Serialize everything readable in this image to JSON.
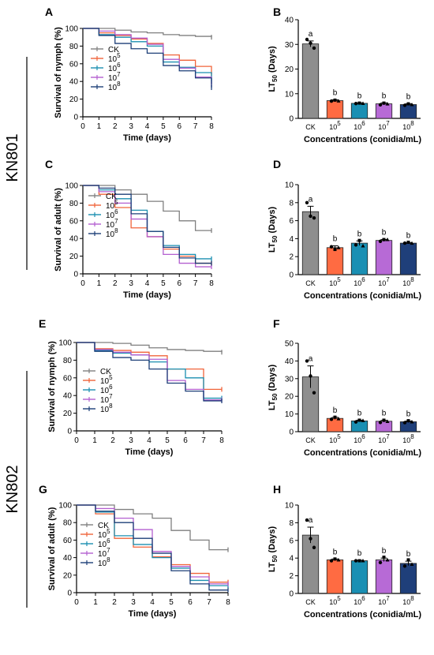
{
  "strain_labels": [
    "KN801",
    "KN802"
  ],
  "colors": {
    "CK": "#7f7f7f",
    "1e5": "#f0643a",
    "1e6": "#1b8fb0",
    "1e7": "#b35fd0",
    "1e8": "#1d3f78",
    "bar_CK": "#8e8e8e",
    "bar_1e5": "#ff6b42",
    "bar_1e6": "#1a8fb3",
    "bar_1e7": "#b76ad6",
    "bar_1e8": "#1f3f7a"
  },
  "chart_data": [
    {
      "panel": "A",
      "type": "line",
      "step": true,
      "xlabel": "Time (days)",
      "ylabel": "Survival of nymph (%)",
      "x": [
        0,
        1,
        2,
        3,
        4,
        5,
        6,
        7,
        8
      ],
      "xlim": [
        0,
        8
      ],
      "ylim": [
        0,
        100
      ],
      "xticks": [
        "0",
        "1",
        "2",
        "3",
        "4",
        "5",
        "6",
        "7",
        "8"
      ],
      "yticks": [
        "0",
        "20",
        "40",
        "60",
        "80",
        "100"
      ],
      "legend": {
        "labels": [
          "CK",
          "10",
          "10",
          "10",
          "10"
        ],
        "exponents": [
          "",
          "5",
          "6",
          "7",
          "8"
        ],
        "position": "left"
      },
      "series": [
        {
          "name": "CK",
          "color_key": "CK",
          "values": [
            100,
            100,
            98,
            96,
            95,
            93,
            92,
            91,
            90
          ]
        },
        {
          "name": "10^5",
          "color_key": "1e5",
          "values": [
            100,
            95,
            92,
            88,
            83,
            70,
            64,
            57,
            48
          ]
        },
        {
          "name": "10^6",
          "color_key": "1e6",
          "values": [
            100,
            93,
            90,
            85,
            80,
            62,
            56,
            50,
            40
          ]
        },
        {
          "name": "10^7",
          "color_key": "1e7",
          "values": [
            100,
            97,
            93,
            89,
            82,
            65,
            55,
            45,
            37
          ]
        },
        {
          "name": "10^8",
          "color_key": "1e8",
          "values": [
            100,
            92,
            83,
            77,
            72,
            58,
            52,
            44,
            33
          ]
        }
      ]
    },
    {
      "panel": "B",
      "type": "bar",
      "xlabel": "Concentrations (conidia/mL)",
      "ylabel": "LT",
      "ylabel_sub": "50",
      "ylabel_tail": " (Days)",
      "categories": [
        "CK",
        "10",
        "10",
        "10",
        "10"
      ],
      "category_exponents": [
        "",
        "5",
        "6",
        "7",
        "8"
      ],
      "values": [
        30.2,
        7.2,
        6.1,
        5.9,
        5.6
      ],
      "errors": [
        1.2,
        0.3,
        0.2,
        0.4,
        0.3
      ],
      "letters": [
        "a",
        "b",
        "b",
        "b",
        "b"
      ],
      "points": [
        [
          32,
          30.5,
          28.5
        ],
        [
          7,
          7.4,
          7.1
        ],
        [
          6,
          6.2,
          6.1
        ],
        [
          5.5,
          6.2,
          5.9
        ],
        [
          5.3,
          5.9,
          5.6
        ]
      ],
      "ylim": [
        0,
        40
      ],
      "yticks": [
        "0",
        "10",
        "20",
        "30",
        "40"
      ]
    },
    {
      "panel": "C",
      "type": "line",
      "step": true,
      "xlabel": "Time (days)",
      "ylabel": "Survival of adult (%)",
      "x": [
        0,
        1,
        2,
        3,
        4,
        5,
        6,
        7,
        8
      ],
      "xlim": [
        0,
        8
      ],
      "ylim": [
        0,
        100
      ],
      "xticks": [
        "0",
        "1",
        "2",
        "3",
        "4",
        "5",
        "6",
        "7",
        "8"
      ],
      "yticks": [
        "0",
        "20",
        "40",
        "60",
        "80",
        "100"
      ],
      "legend": {
        "labels": [
          "CK",
          "10",
          "10",
          "10",
          "10"
        ],
        "exponents": [
          "",
          "5",
          "6",
          "7",
          "8"
        ],
        "position": "left"
      },
      "series": [
        {
          "name": "CK",
          "color_key": "CK",
          "values": [
            100,
            100,
            95,
            90,
            82,
            71,
            60,
            49,
            49
          ]
        },
        {
          "name": "10^5",
          "color_key": "1e5",
          "values": [
            100,
            90,
            75,
            52,
            42,
            28,
            20,
            12,
            12
          ]
        },
        {
          "name": "10^6",
          "color_key": "1e6",
          "values": [
            100,
            95,
            85,
            72,
            48,
            32,
            22,
            17,
            17
          ]
        },
        {
          "name": "10^7",
          "color_key": "1e7",
          "values": [
            100,
            93,
            80,
            62,
            42,
            22,
            12,
            8,
            8
          ]
        },
        {
          "name": "10^8",
          "color_key": "1e8",
          "values": [
            100,
            97,
            90,
            68,
            48,
            30,
            18,
            12,
            12
          ]
        }
      ]
    },
    {
      "panel": "D",
      "type": "bar",
      "xlabel": "Concentrations (conidia/mL)",
      "ylabel": "LT",
      "ylabel_sub": "50",
      "ylabel_tail": " (Days)",
      "categories": [
        "CK",
        "10",
        "10",
        "10",
        "10"
      ],
      "category_exponents": [
        "",
        "5",
        "6",
        "7",
        "8"
      ],
      "values": [
        7.0,
        3.0,
        3.5,
        3.8,
        3.5
      ],
      "errors": [
        0.6,
        0.2,
        0.25,
        0.1,
        0.05
      ],
      "letters": [
        "a",
        "b",
        "b",
        "b",
        "b"
      ],
      "points": [
        [
          8.0,
          6.5,
          6.3
        ],
        [
          3.1,
          2.8,
          3.0
        ],
        [
          3.3,
          3.8,
          3.2
        ],
        [
          3.7,
          3.9,
          3.9
        ],
        [
          3.5,
          3.6,
          3.5
        ]
      ],
      "ylim": [
        0,
        10
      ],
      "yticks": [
        "0",
        "2",
        "4",
        "6",
        "8",
        "10"
      ]
    },
    {
      "panel": "E",
      "type": "line",
      "step": true,
      "xlabel": "Time (days)",
      "ylabel": "Survival of nymph (%)",
      "x": [
        0,
        1,
        2,
        3,
        4,
        5,
        6,
        7,
        8
      ],
      "xlim": [
        0,
        8
      ],
      "ylim": [
        0,
        100
      ],
      "xticks": [
        "0",
        "1",
        "2",
        "3",
        "4",
        "5",
        "6",
        "7",
        "8"
      ],
      "yticks": [
        "0",
        "20",
        "40",
        "60",
        "80",
        "100"
      ],
      "legend": {
        "labels": [
          "CK",
          "10",
          "10",
          "10",
          "10"
        ],
        "exponents": [
          "",
          "5",
          "6",
          "7",
          "8"
        ],
        "position": "left"
      },
      "series": [
        {
          "name": "CK",
          "color_key": "CK",
          "values": [
            100,
            100,
            99,
            97,
            94,
            92,
            91,
            90,
            89
          ]
        },
        {
          "name": "10^5",
          "color_key": "1e5",
          "values": [
            100,
            93,
            91,
            89,
            85,
            70,
            70,
            47,
            47
          ]
        },
        {
          "name": "10^6",
          "color_key": "1e6",
          "values": [
            100,
            91,
            88,
            86,
            78,
            70,
            60,
            37,
            37
          ]
        },
        {
          "name": "10^7",
          "color_key": "1e7",
          "values": [
            100,
            92,
            89,
            86,
            81,
            57,
            47,
            35,
            35
          ]
        },
        {
          "name": "10^8",
          "color_key": "1e8",
          "values": [
            100,
            90,
            83,
            80,
            70,
            54,
            45,
            34,
            34
          ]
        }
      ]
    },
    {
      "panel": "F",
      "type": "bar",
      "xlabel": "Concentrations (conidia/mL)",
      "ylabel": "LT",
      "ylabel_sub": "50",
      "ylabel_tail": " (Days)",
      "categories": [
        "CK",
        "10",
        "10",
        "10",
        "10"
      ],
      "category_exponents": [
        "",
        "5",
        "6",
        "7",
        "8"
      ],
      "values": [
        31.0,
        7.5,
        6.1,
        5.9,
        5.6
      ],
      "errors": [
        6.2,
        0.6,
        0.4,
        0.5,
        0.4
      ],
      "letters": [
        "a",
        "b",
        "b",
        "b",
        "b"
      ],
      "points": [
        [
          40,
          31.5,
          22
        ],
        [
          7,
          8.2,
          7.3
        ],
        [
          5.5,
          6.5,
          6.3
        ],
        [
          5.2,
          6.5,
          5.8
        ],
        [
          5.1,
          6.2,
          5.6
        ]
      ],
      "ylim": [
        0,
        50
      ],
      "yticks": [
        "0",
        "10",
        "20",
        "30",
        "40",
        "50"
      ]
    },
    {
      "panel": "G",
      "type": "line",
      "step": true,
      "xlabel": "Time (days)",
      "ylabel": "Survival of adult (%)",
      "x": [
        0,
        1,
        2,
        3,
        4,
        5,
        6,
        7,
        8
      ],
      "xlim": [
        0,
        8
      ],
      "ylim": [
        0,
        100
      ],
      "xticks": [
        "0",
        "1",
        "2",
        "3",
        "4",
        "5",
        "6",
        "7",
        "8"
      ],
      "yticks": [
        "0",
        "20",
        "40",
        "60",
        "80",
        "100"
      ],
      "legend": {
        "labels": [
          "CK",
          "10",
          "10",
          "10",
          "10"
        ],
        "exponents": [
          "",
          "5",
          "6",
          "7",
          "8"
        ],
        "position": "left"
      },
      "series": [
        {
          "name": "CK",
          "color_key": "CK",
          "values": [
            100,
            100,
            95,
            90,
            85,
            71,
            60,
            49,
            49
          ]
        },
        {
          "name": "10^5",
          "color_key": "1e5",
          "values": [
            100,
            90,
            62,
            52,
            41,
            32,
            22,
            12,
            12
          ]
        },
        {
          "name": "10^6",
          "color_key": "1e6",
          "values": [
            100,
            92,
            65,
            55,
            40,
            28,
            14,
            8,
            8
          ]
        },
        {
          "name": "10^7",
          "color_key": "1e7",
          "values": [
            100,
            96,
            85,
            72,
            47,
            30,
            18,
            10,
            10
          ]
        },
        {
          "name": "10^8",
          "color_key": "1e8",
          "values": [
            100,
            93,
            80,
            62,
            45,
            25,
            10,
            3,
            3
          ]
        }
      ]
    },
    {
      "panel": "H",
      "type": "bar",
      "xlabel": "Concentrations (conidia/mL)",
      "ylabel": "LT",
      "ylabel_sub": "50",
      "ylabel_tail": " (Days)",
      "categories": [
        "CK",
        "10",
        "10",
        "10",
        "10"
      ],
      "category_exponents": [
        "",
        "5",
        "6",
        "7",
        "8"
      ],
      "values": [
        6.6,
        3.8,
        3.7,
        3.8,
        3.4
      ],
      "errors": [
        0.9,
        0.1,
        0.05,
        0.2,
        0.25
      ],
      "letters": [
        "a",
        "b",
        "b",
        "b",
        "b"
      ],
      "points": [
        [
          8.3,
          6.2,
          5.2
        ],
        [
          3.7,
          3.9,
          3.8
        ],
        [
          3.7,
          3.7,
          3.7
        ],
        [
          3.5,
          4.1,
          3.8
        ],
        [
          3.1,
          3.8,
          3.3
        ]
      ],
      "ylim": [
        0,
        10
      ],
      "yticks": [
        "0",
        "2",
        "4",
        "6",
        "8",
        "10"
      ]
    }
  ]
}
